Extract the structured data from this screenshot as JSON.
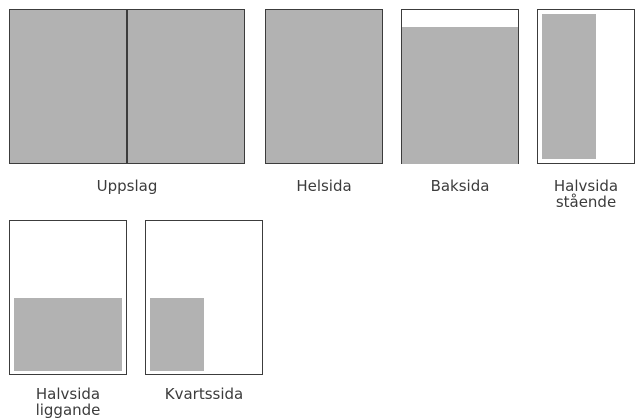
{
  "colors": {
    "border": "#3c3c3c",
    "fill": "#b2b2b2",
    "label": "#3c3c3c"
  },
  "formats": {
    "uppslag": {
      "label": "Uppslag"
    },
    "helsida": {
      "label": "Helsida"
    },
    "baksida": {
      "label": "Baksida"
    },
    "halvsida_staende": {
      "label_line1": "Halvsida",
      "label_line2": "stående"
    },
    "halvsida_liggande": {
      "label_line1": "Halvsida",
      "label_line2": "liggande"
    },
    "kvartssida": {
      "label": "Kvartssida"
    }
  }
}
